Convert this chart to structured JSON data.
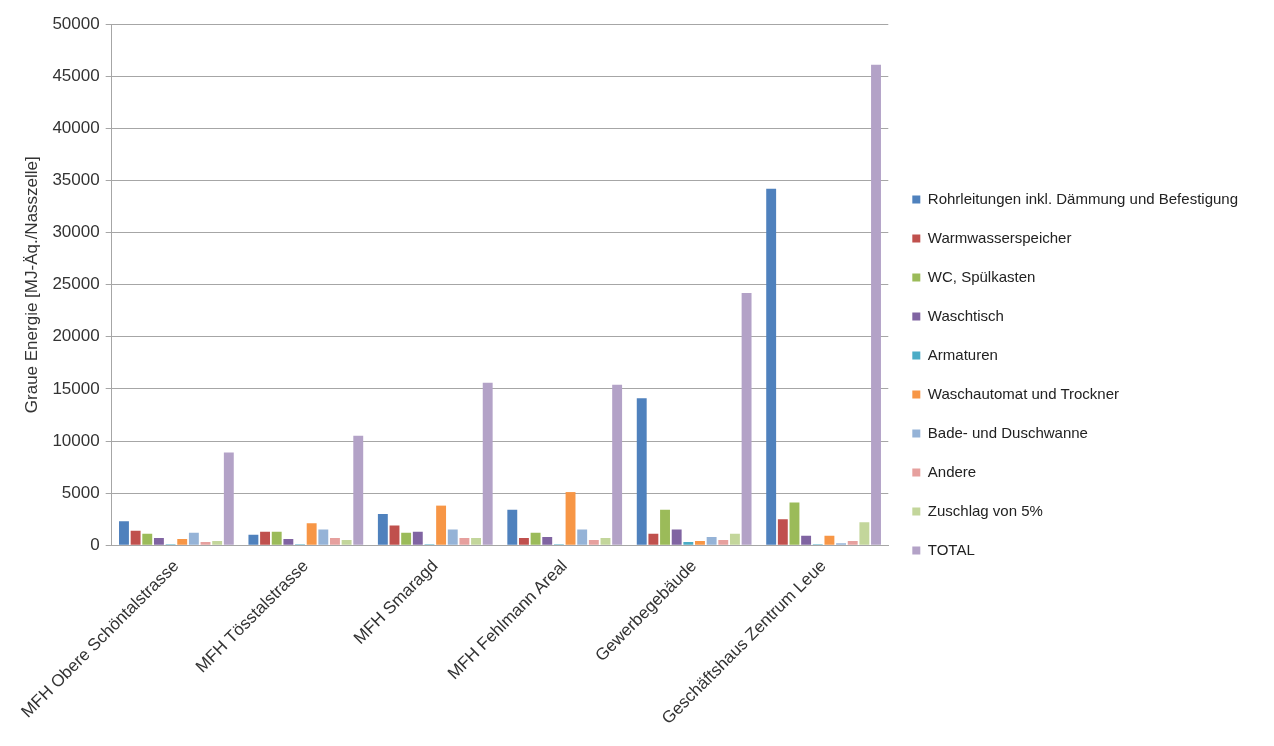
{
  "chart_data": {
    "type": "bar",
    "ylabel": "Graue Energie [MJ-Äq./Nasszelle]",
    "categories": [
      "MFH Obere Schöntalstrasse",
      "MFH Tösstalstrasse",
      "MFH Smaragd",
      "MFH Fehlmann Areal",
      "Gewerbegebäude",
      "Geschäftshaus Zentrum Leue"
    ],
    "series": [
      {
        "name": "Rohrleitungen inkl. Dämmung und Befestigung",
        "color": "#4f81bd",
        "values": [
          2300,
          1000,
          3000,
          3400,
          14100,
          34200
        ]
      },
      {
        "name": "Warmwasserspeicher",
        "color": "#c0504d",
        "values": [
          1400,
          1300,
          1900,
          700,
          1100,
          2500
        ]
      },
      {
        "name": "WC, Spülkasten",
        "color": "#9bbb59",
        "values": [
          1100,
          1300,
          1200,
          1200,
          3400,
          4100
        ]
      },
      {
        "name": "Waschtisch",
        "color": "#8064a2",
        "values": [
          700,
          600,
          1300,
          800,
          1500,
          900
        ]
      },
      {
        "name": "Armaturen",
        "color": "#4bacc6",
        "values": [
          100,
          100,
          100,
          100,
          300,
          100
        ]
      },
      {
        "name": "Waschautomat und Trockner",
        "color": "#f79646",
        "values": [
          600,
          2100,
          3800,
          5100,
          400,
          900
        ]
      },
      {
        "name": "Bade- und Duschwanne",
        "color": "#95b3d7",
        "values": [
          1200,
          1500,
          1500,
          1500,
          800,
          200
        ]
      },
      {
        "name": "Andere",
        "color": "#e6a09e",
        "values": [
          300,
          700,
          700,
          500,
          500,
          400
        ]
      },
      {
        "name": "Zuschlag von 5%",
        "color": "#c3d69b",
        "values": [
          400,
          500,
          700,
          700,
          1100,
          2200
        ]
      },
      {
        "name": "TOTAL",
        "color": "#b3a2c7",
        "values": [
          8900,
          10500,
          15600,
          15400,
          24200,
          46100
        ]
      }
    ],
    "ylim": [
      0,
      50000
    ],
    "yticks": [
      0,
      5000,
      10000,
      15000,
      20000,
      25000,
      30000,
      35000,
      40000,
      45000,
      50000
    ],
    "grid": "y",
    "legend": "right"
  }
}
